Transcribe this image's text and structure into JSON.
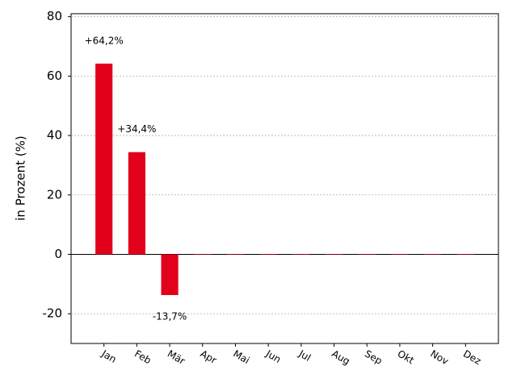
{
  "chart_data": {
    "type": "bar",
    "y_label": "in Prozent (%)",
    "categories": [
      "Jan",
      "Feb",
      "Mär",
      "Apr",
      "Mai",
      "Jun",
      "Jul",
      "Aug",
      "Sep",
      "Okt",
      "Nov",
      "Dez"
    ],
    "values": [
      64.2,
      34.4,
      -13.7,
      0,
      0,
      0,
      0,
      0,
      0,
      0,
      0,
      0
    ],
    "value_labels": [
      "+64,2%",
      "+34,4%",
      "-13,7%",
      null,
      null,
      null,
      null,
      null,
      null,
      null,
      null,
      null
    ],
    "color": "#e2001a",
    "ylim": [
      -30,
      81
    ],
    "yticks": [
      -20,
      0,
      20,
      40,
      60,
      80
    ],
    "grid": true
  }
}
